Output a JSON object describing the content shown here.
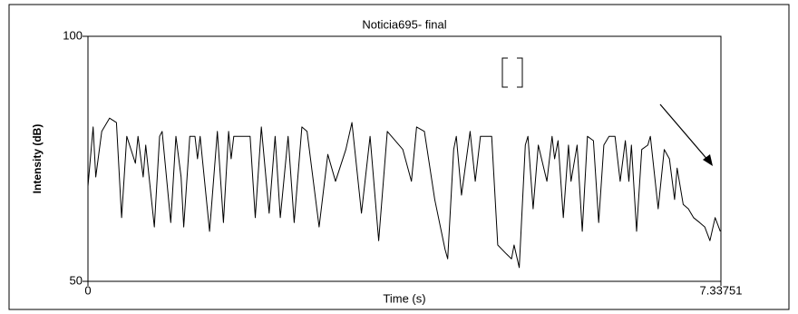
{
  "chart_data": {
    "type": "line",
    "title": "Noticia695- final",
    "xlabel": "Time (s)",
    "ylabel": "Intensity (dB)",
    "x": [
      0,
      0.06,
      0.09,
      0.16,
      0.25,
      0.33,
      0.39,
      0.45,
      0.55,
      0.58,
      0.64,
      0.67,
      0.77,
      0.83,
      0.86,
      0.96,
      1.02,
      1.08,
      1.11,
      1.18,
      1.24,
      1.27,
      1.3,
      1.41,
      1.5,
      1.57,
      1.63,
      1.66,
      1.69,
      1.88,
      1.94,
      2.01,
      2.1,
      2.17,
      2.23,
      2.32,
      2.39,
      2.48,
      2.54,
      2.68,
      2.78,
      2.87,
      2.99,
      3.06,
      3.17,
      3.27,
      3.37,
      3.47,
      3.65,
      3.75,
      3.81,
      3.9,
      4.02,
      4.14,
      4.17,
      4.24,
      4.27,
      4.33,
      4.43,
      4.49,
      4.55,
      4.68,
      4.75,
      4.85,
      4.91,
      4.94,
      5.0,
      5.07,
      5.1,
      5.16,
      5.22,
      5.32,
      5.38,
      5.41,
      5.45,
      5.51,
      5.57,
      5.6,
      5.67,
      5.73,
      5.79,
      5.86,
      5.92,
      5.98,
      6.04,
      6.11,
      6.17,
      6.23,
      6.27,
      6.3,
      6.36,
      6.42,
      6.49,
      6.52,
      6.61,
      6.68,
      6.74,
      6.8,
      6.83,
      6.9,
      6.96,
      7.02,
      7.09,
      7.15,
      7.21,
      7.27,
      7.33
    ],
    "series": [
      {
        "color": "#000000",
        "values": [
          69.4,
          81.5,
          71.3,
          80.6,
          83.3,
          82.4,
          63.0,
          79.6,
          74.1,
          79.6,
          71.3,
          77.8,
          61.1,
          79.6,
          80.6,
          62.0,
          79.6,
          71.3,
          61.1,
          79.6,
          79.6,
          75.0,
          79.6,
          60.2,
          80.6,
          62.0,
          80.6,
          75.0,
          79.6,
          79.6,
          63.0,
          81.5,
          63.9,
          79.6,
          63.0,
          79.6,
          62.0,
          81.5,
          80.6,
          61.1,
          75.9,
          70.4,
          76.9,
          82.4,
          63.9,
          79.6,
          58.3,
          80.6,
          76.9,
          70.4,
          81.5,
          80.6,
          66.7,
          56.5,
          54.6,
          76.9,
          79.6,
          67.6,
          80.6,
          70.4,
          79.6,
          79.6,
          57.4,
          55.6,
          54.6,
          57.4,
          52.8,
          77.8,
          79.6,
          64.8,
          77.8,
          70.4,
          79.6,
          75.0,
          78.7,
          63.0,
          77.8,
          70.4,
          77.8,
          60.2,
          79.6,
          78.7,
          62.0,
          77.8,
          79.6,
          79.6,
          70.4,
          78.7,
          70.4,
          77.8,
          60.2,
          76.9,
          77.8,
          79.6,
          64.8,
          76.9,
          75.0,
          66.7,
          73.1,
          65.7,
          64.8,
          63.0,
          62.0,
          61.1,
          58.3,
          63.0,
          60.2
        ]
      }
    ],
    "xlim": [
      0,
      7.33751
    ],
    "ylim": [
      50,
      100
    ],
    "xticks": [
      0,
      7.33751
    ],
    "yticks": [
      50,
      100
    ]
  }
}
